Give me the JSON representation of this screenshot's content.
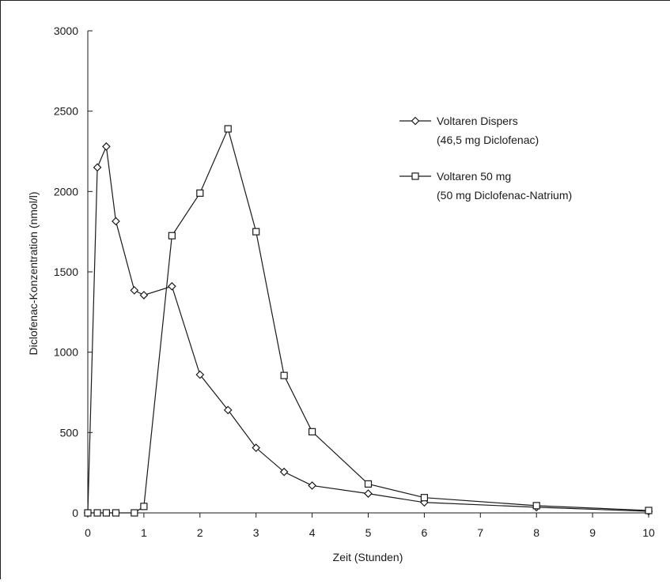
{
  "chart_data": {
    "type": "line",
    "title": "",
    "xlabel": "Zeit (Stunden)",
    "ylabel": "Diclofenac-Konzentration (nmol/l)",
    "xlim": [
      0,
      10
    ],
    "ylim": [
      0,
      3000
    ],
    "xticks": [
      0,
      1,
      2,
      3,
      4,
      5,
      6,
      7,
      8,
      9,
      10
    ],
    "yticks": [
      0,
      500,
      1000,
      1500,
      2000,
      2500,
      3000
    ],
    "grid": false,
    "legend_position": "top-right",
    "series": [
      {
        "name": "Voltaren Dispers",
        "subtitle": "(46,5 mg Diclofenac)",
        "marker": "diamond",
        "color": "#1a1a1a",
        "x": [
          0,
          0.17,
          0.33,
          0.5,
          0.83,
          1,
          1.5,
          2,
          2.5,
          3,
          3.5,
          4,
          5,
          6,
          8,
          10
        ],
        "y": [
          0,
          2150,
          2280,
          1815,
          1385,
          1355,
          1410,
          860,
          640,
          405,
          255,
          170,
          120,
          65,
          35,
          10
        ]
      },
      {
        "name": "Voltaren 50 mg",
        "subtitle": "(50 mg Diclofenac-Natrium)",
        "marker": "square",
        "color": "#1a1a1a",
        "x": [
          0,
          0.17,
          0.33,
          0.5,
          0.83,
          1,
          1.5,
          2,
          2.5,
          3,
          3.5,
          4,
          5,
          6,
          8,
          10
        ],
        "y": [
          0,
          0,
          0,
          0,
          0,
          40,
          1725,
          1990,
          2390,
          1750,
          855,
          505,
          180,
          95,
          45,
          15
        ]
      }
    ]
  }
}
